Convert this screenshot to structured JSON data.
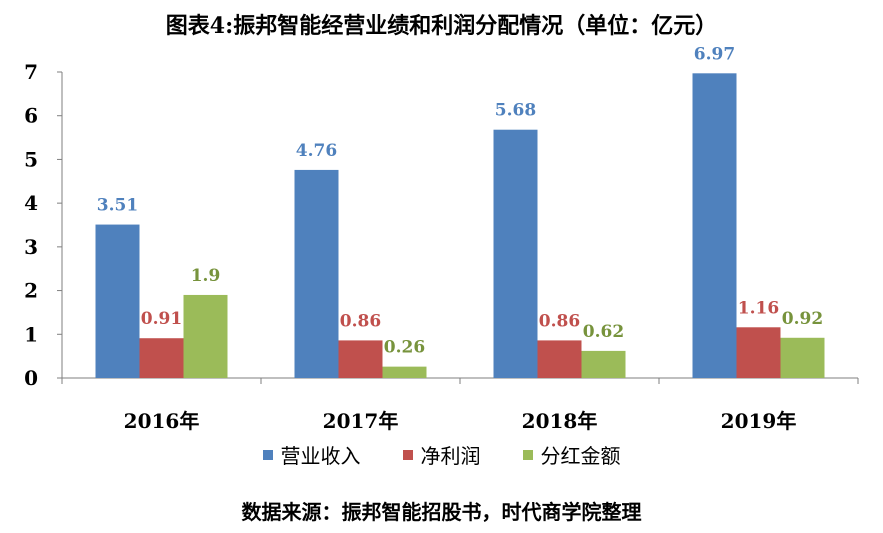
{
  "chart_data": {
    "type": "bar",
    "title": "图表4:振邦智能经营业绩和利润分配情况（单位：亿元）",
    "categories": [
      "2016年",
      "2017年",
      "2018年",
      "2019年"
    ],
    "series": [
      {
        "name": "营业收入",
        "color": "#4F81BD",
        "values": [
          3.51,
          4.76,
          5.68,
          6.97
        ]
      },
      {
        "name": "净利润",
        "color": "#C0504D",
        "values": [
          0.91,
          0.86,
          0.86,
          1.16
        ]
      },
      {
        "name": "分红金额",
        "color": "#9BBB59",
        "values": [
          1.9,
          0.26,
          0.62,
          0.92
        ]
      }
    ],
    "ylim": [
      0,
      7
    ],
    "yticks": [
      0,
      1,
      2,
      3,
      4,
      5,
      6,
      7
    ],
    "grid": false,
    "legend_position": "bottom",
    "source": "数据来源：振邦智能招股书，时代商学院整理"
  }
}
